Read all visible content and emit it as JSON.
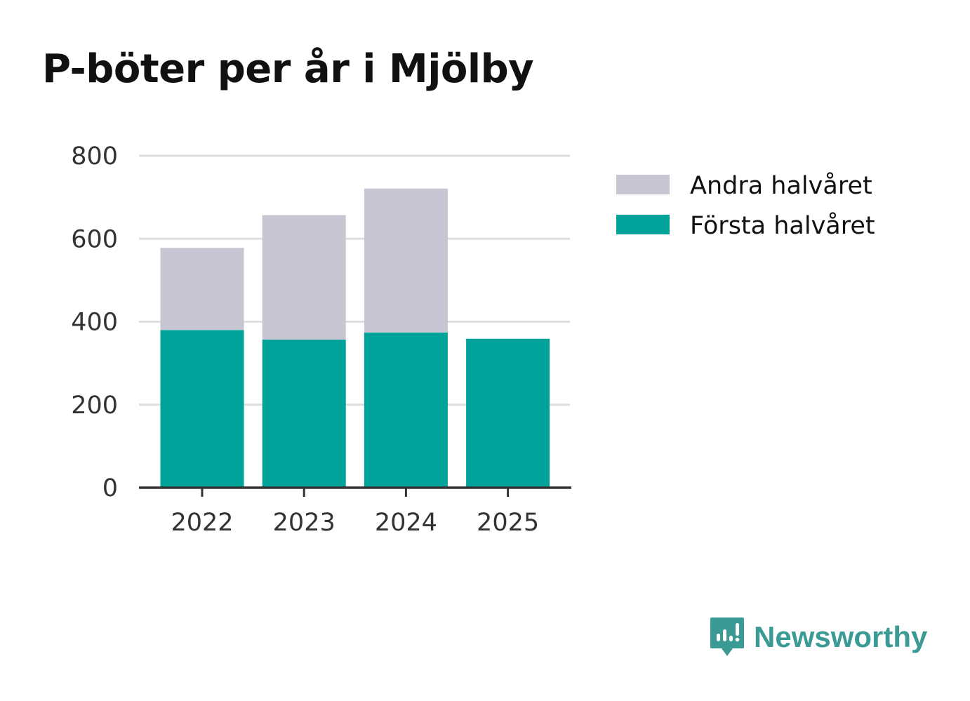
{
  "title": "P-böter per år i Mjölby",
  "chart_data": {
    "type": "bar",
    "stacked": true,
    "categories": [
      "2022",
      "2023",
      "2024",
      "2025"
    ],
    "series": [
      {
        "name": "Första halvåret",
        "color": "#00a39a",
        "values": [
          380,
          357,
          374,
          359
        ]
      },
      {
        "name": "Andra halvåret",
        "color": "#c7c6d2",
        "values": [
          198,
          300,
          347,
          0
        ]
      }
    ],
    "ylim": [
      0,
      800
    ],
    "yticks": [
      0,
      200,
      400,
      600,
      800
    ],
    "xlabel": "",
    "ylabel": "",
    "grid": true,
    "legend": [
      {
        "label": "Andra halvåret",
        "color": "#c7c6d2"
      },
      {
        "label": "Första halvåret",
        "color": "#00a39a"
      }
    ],
    "legend_position": "right"
  },
  "brand": {
    "name": "Newsworthy",
    "icon": "newsworthy-logo-icon",
    "color": "#3b9b94"
  }
}
